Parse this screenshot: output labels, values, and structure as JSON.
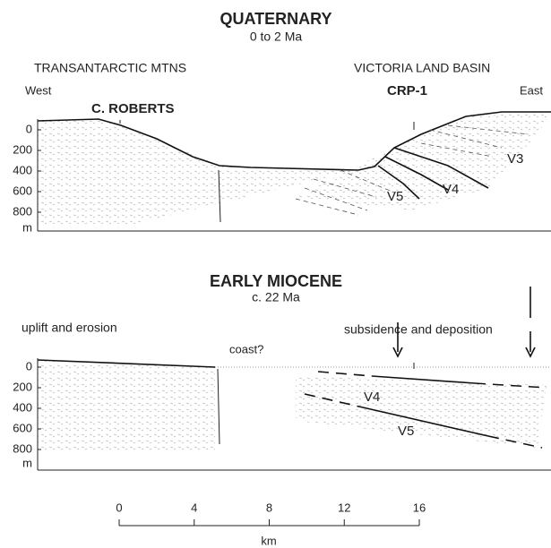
{
  "panels": [
    {
      "title": "QUATERNARY",
      "subtitle": "0 to 2 Ma",
      "left_region": "TRANSANTARCTIC  MTNS",
      "right_region": "VICTORIA LAND BASIN",
      "west": "West",
      "east": "East",
      "site_left": "C. ROBERTS",
      "site_right": "CRP-1",
      "units": [
        "V3",
        "V4",
        "V5"
      ],
      "depth_ticks": [
        0,
        200,
        400,
        600,
        800
      ],
      "depth_unit": "m"
    },
    {
      "title": "EARLY MIOCENE",
      "subtitle": "c. 22 Ma",
      "left_note": "uplift and erosion",
      "coast": "coast?",
      "right_note": "subsidence and deposition",
      "units": [
        "V4",
        "V5"
      ],
      "depth_ticks": [
        0,
        200,
        400,
        600,
        800
      ],
      "depth_unit": "m"
    }
  ],
  "scale": {
    "ticks": [
      0,
      4,
      8,
      12,
      16
    ],
    "unit": "km"
  }
}
